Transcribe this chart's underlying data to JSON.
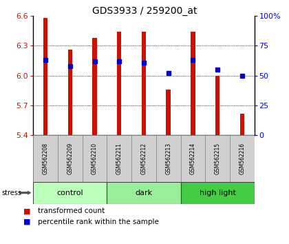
{
  "title": "GDS3933 / 259200_at",
  "samples": [
    "GSM562208",
    "GSM562209",
    "GSM562210",
    "GSM562211",
    "GSM562212",
    "GSM562213",
    "GSM562214",
    "GSM562215",
    "GSM562216"
  ],
  "bar_values": [
    6.58,
    6.26,
    6.38,
    6.44,
    6.44,
    5.86,
    6.44,
    6.0,
    5.62
  ],
  "percentile_values": [
    63,
    58,
    62,
    62,
    61,
    52,
    63,
    55,
    50
  ],
  "y_min": 5.4,
  "y_max": 6.6,
  "y_ticks": [
    5.4,
    5.7,
    6.0,
    6.3,
    6.6
  ],
  "right_y_ticks": [
    0,
    25,
    50,
    75,
    100
  ],
  "groups": [
    {
      "label": "control",
      "start": 0,
      "end": 3,
      "color": "#bbffbb"
    },
    {
      "label": "dark",
      "start": 3,
      "end": 6,
      "color": "#99ee99"
    },
    {
      "label": "high light",
      "start": 6,
      "end": 9,
      "color": "#44cc44"
    }
  ],
  "bar_color": "#cc1100",
  "percentile_color": "#0000cc",
  "bar_width": 0.18,
  "label_color_left": "#cc1100",
  "label_color_right": "#0000cc",
  "stress_label": "stress",
  "legend_red_label": "transformed count",
  "legend_blue_label": "percentile rank within the sample",
  "grid_ticks": [
    5.7,
    6.0,
    6.3
  ],
  "sample_box_color": "#d0d0d0",
  "sample_box_edge": "#888888"
}
